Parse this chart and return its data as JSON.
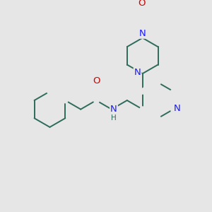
{
  "bg_color": "#e6e6e6",
  "bond_color": "#2d6b5a",
  "bond_width": 1.4,
  "atom_colors": {
    "N": "#1a1aff",
    "O": "#cc0000",
    "H": "#2d6b5a"
  },
  "font_size": 8.5,
  "dbo": 0.018
}
